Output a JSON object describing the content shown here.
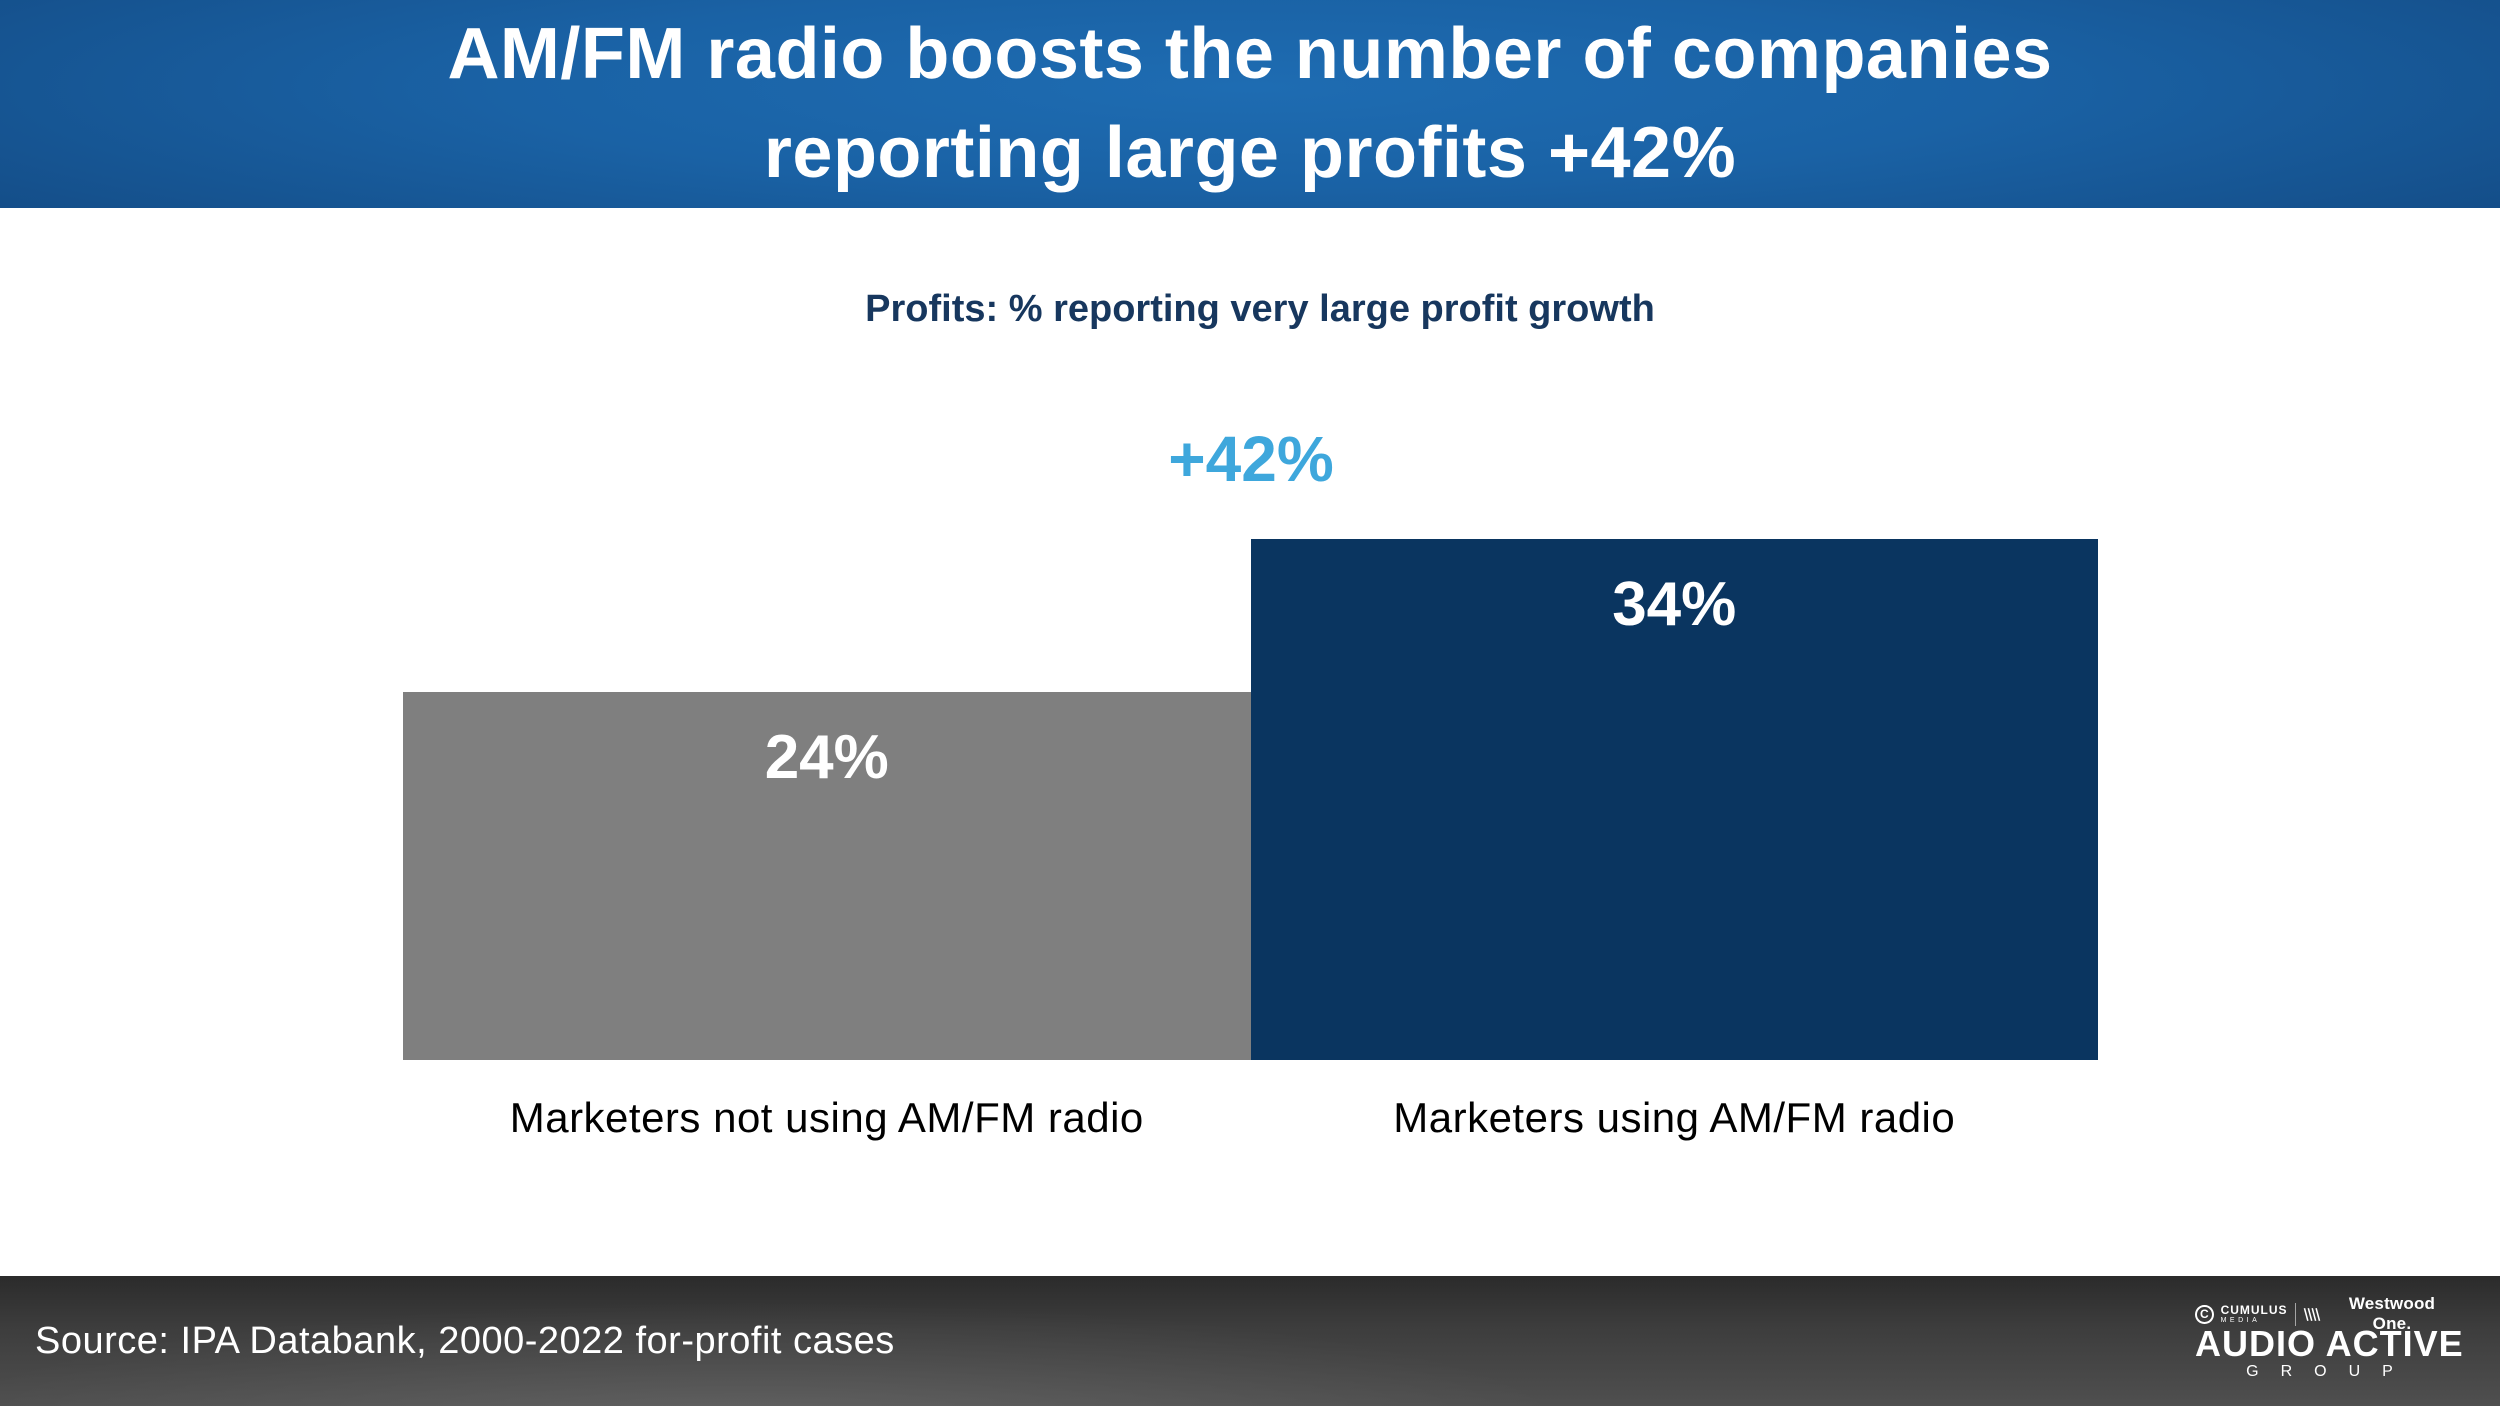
{
  "slide": {
    "title_line1": "AM/FM radio boosts the number of companies",
    "title_line2": "reporting large profits +42%",
    "source": "Source: IPA Databank, 2000-2022 for-profit cases"
  },
  "chart_data": {
    "type": "bar",
    "title": "Profits: % reporting very large profit growth",
    "categories": [
      "Marketers not using AM/FM radio",
      "Marketers using AM/FM radio"
    ],
    "values": [
      24,
      34
    ],
    "value_labels": [
      "24%",
      "34%"
    ],
    "annotation": "+42%",
    "annotation_meaning": "lift of 34% vs 24%",
    "bar_colors": [
      "#7f7f7f",
      "#0a3560"
    ],
    "xlabel": "",
    "ylabel": "",
    "ylim": [
      0,
      34
    ],
    "grid": false,
    "legend": false,
    "value_label_position": "inside-top",
    "value_label_color": "#ffffff"
  },
  "footer": {
    "logos": {
      "cumulus_icon_letter": "C",
      "cumulus": "CUMULUS",
      "media": "MEDIA",
      "westwood_one": "Westwood One.",
      "audio_active": "AUDIO ACTIVE",
      "group": "GROUP"
    }
  },
  "colors": {
    "accent_light_blue": "#3ea7dc",
    "subtitle_navy": "#17375e",
    "bar_gray": "#7f7f7f",
    "bar_navy": "#0a3560",
    "banner_blue_center": "#1e6cb2",
    "banner_blue_edge": "#071d40",
    "footer_gray": "#3d3d3d"
  }
}
